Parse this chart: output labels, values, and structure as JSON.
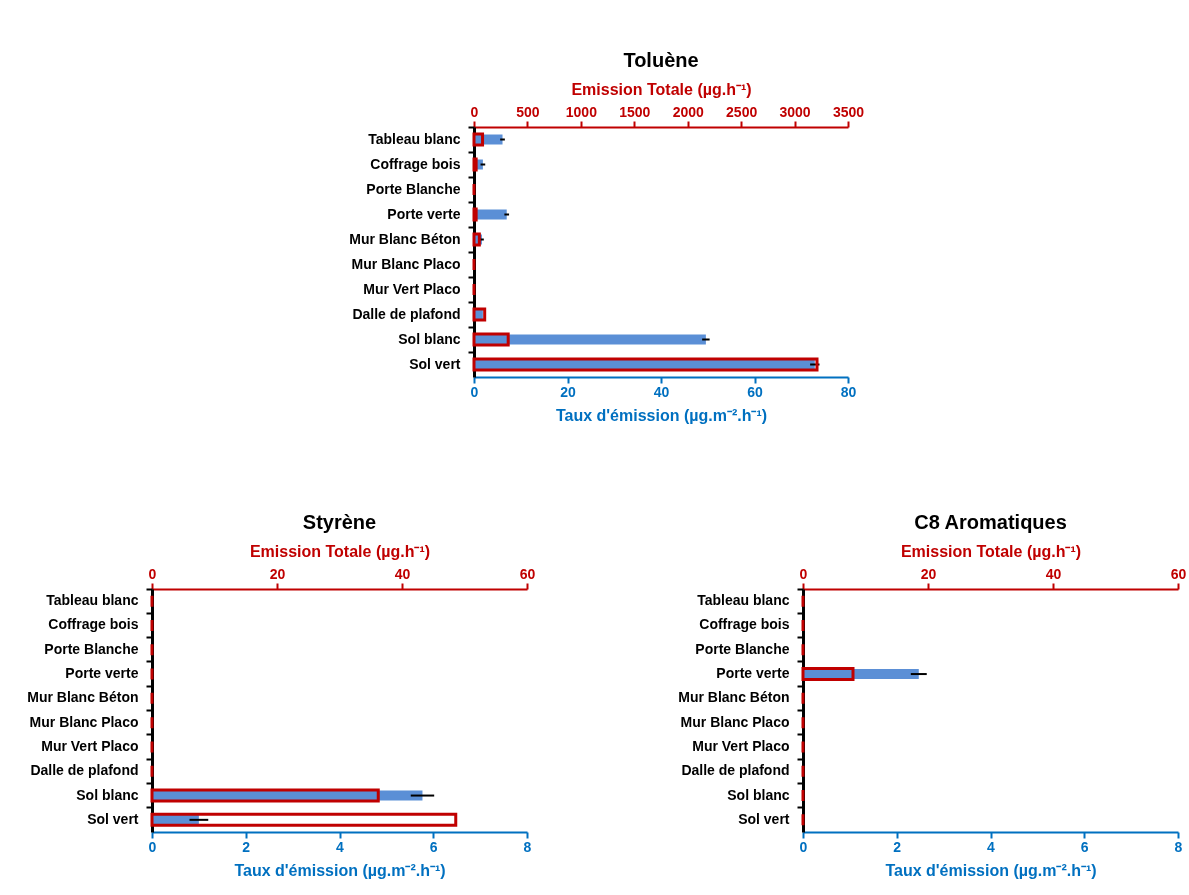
{
  "chart_data": [
    {
      "type": "bar",
      "orientation": "horizontal",
      "title": "Toluène",
      "xlabel": "Taux d'émission (µg.m⁻².h⁻¹)",
      "x2label": "Emission Totale (µg.h⁻¹)",
      "categories": [
        "Tableau blanc",
        "Coffrage bois",
        "Porte Blanche",
        "Porte verte",
        "Mur Blanc Béton",
        "Mur Blanc Placo",
        "Mur Vert Placo",
        "Dalle de plafond",
        "Sol blanc",
        "Sol vert"
      ],
      "xlim": [
        0,
        80
      ],
      "xticks": [
        0,
        20,
        40,
        60,
        80
      ],
      "x2lim": [
        0,
        3500
      ],
      "x2ticks": [
        0,
        500,
        1000,
        1500,
        2000,
        2500,
        3000,
        3500
      ],
      "series": [
        {
          "color": "#5b8fd6",
          "values": [
            6.1,
            1.9,
            0,
            7.0,
            1.7,
            0,
            0,
            1.9,
            49.6,
            72.9
          ],
          "errors": [
            0.5,
            0.5,
            null,
            0.5,
            0.4,
            null,
            null,
            null,
            0.8,
            1
          ]
        },
        {
          "color": "#c00000",
          "axis": "x2",
          "values": [
            80,
            20,
            0,
            20,
            50,
            0,
            0,
            100,
            320,
            3210
          ]
        }
      ]
    },
    {
      "type": "bar",
      "orientation": "horizontal",
      "title": "Styrène",
      "xlabel": "Taux d'émission (µg.m⁻².h⁻¹)",
      "x2label": "Emission Totale (µg.h⁻¹)",
      "categories": [
        "Tableau blanc",
        "Coffrage bois",
        "Porte Blanche",
        "Porte verte",
        "Mur Blanc Béton",
        "Mur Blanc Placo",
        "Mur Vert Placo",
        "Dalle de plafond",
        "Sol blanc",
        "Sol vert"
      ],
      "xlim": [
        0,
        8
      ],
      "xticks": [
        0,
        2,
        4,
        6,
        8
      ],
      "x2lim": [
        0,
        60
      ],
      "x2ticks": [
        0,
        20,
        40,
        60
      ],
      "series": [
        {
          "color": "#5b8fd6",
          "values": [
            0,
            0,
            0,
            0,
            0,
            0,
            0,
            0,
            5.77,
            1.0
          ],
          "errors": [
            null,
            null,
            null,
            null,
            null,
            null,
            null,
            null,
            0.25,
            0.2
          ]
        },
        {
          "color": "#c00000",
          "axis": "x2",
          "values": [
            0,
            0,
            0,
            0,
            0,
            0,
            0,
            0,
            36.2,
            48.6
          ]
        }
      ]
    },
    {
      "type": "bar",
      "orientation": "horizontal",
      "title": "C8 Aromatiques",
      "xlabel": "Taux d'émission (µg.m⁻².h⁻¹)",
      "x2label": "Emission Totale (µg.h⁻¹)",
      "categories": [
        "Tableau blanc",
        "Coffrage bois",
        "Porte Blanche",
        "Porte verte",
        "Mur Blanc Béton",
        "Mur Blanc Placo",
        "Mur Vert Placo",
        "Dalle de plafond",
        "Sol blanc",
        "Sol vert"
      ],
      "xlim": [
        0,
        8
      ],
      "xticks": [
        0,
        2,
        4,
        6,
        8
      ],
      "x2lim": [
        0,
        60
      ],
      "x2ticks": [
        0,
        20,
        40,
        60
      ],
      "series": [
        {
          "color": "#5b8fd6",
          "values": [
            0,
            0,
            0,
            2.47,
            0,
            0,
            0,
            0,
            0,
            0
          ],
          "errors": [
            null,
            null,
            null,
            0.17,
            null,
            null,
            null,
            null,
            null,
            null
          ]
        },
        {
          "color": "#c00000",
          "axis": "x2",
          "values": [
            0,
            0,
            0,
            8.0,
            0,
            0,
            0,
            0,
            0,
            0
          ]
        }
      ]
    }
  ]
}
